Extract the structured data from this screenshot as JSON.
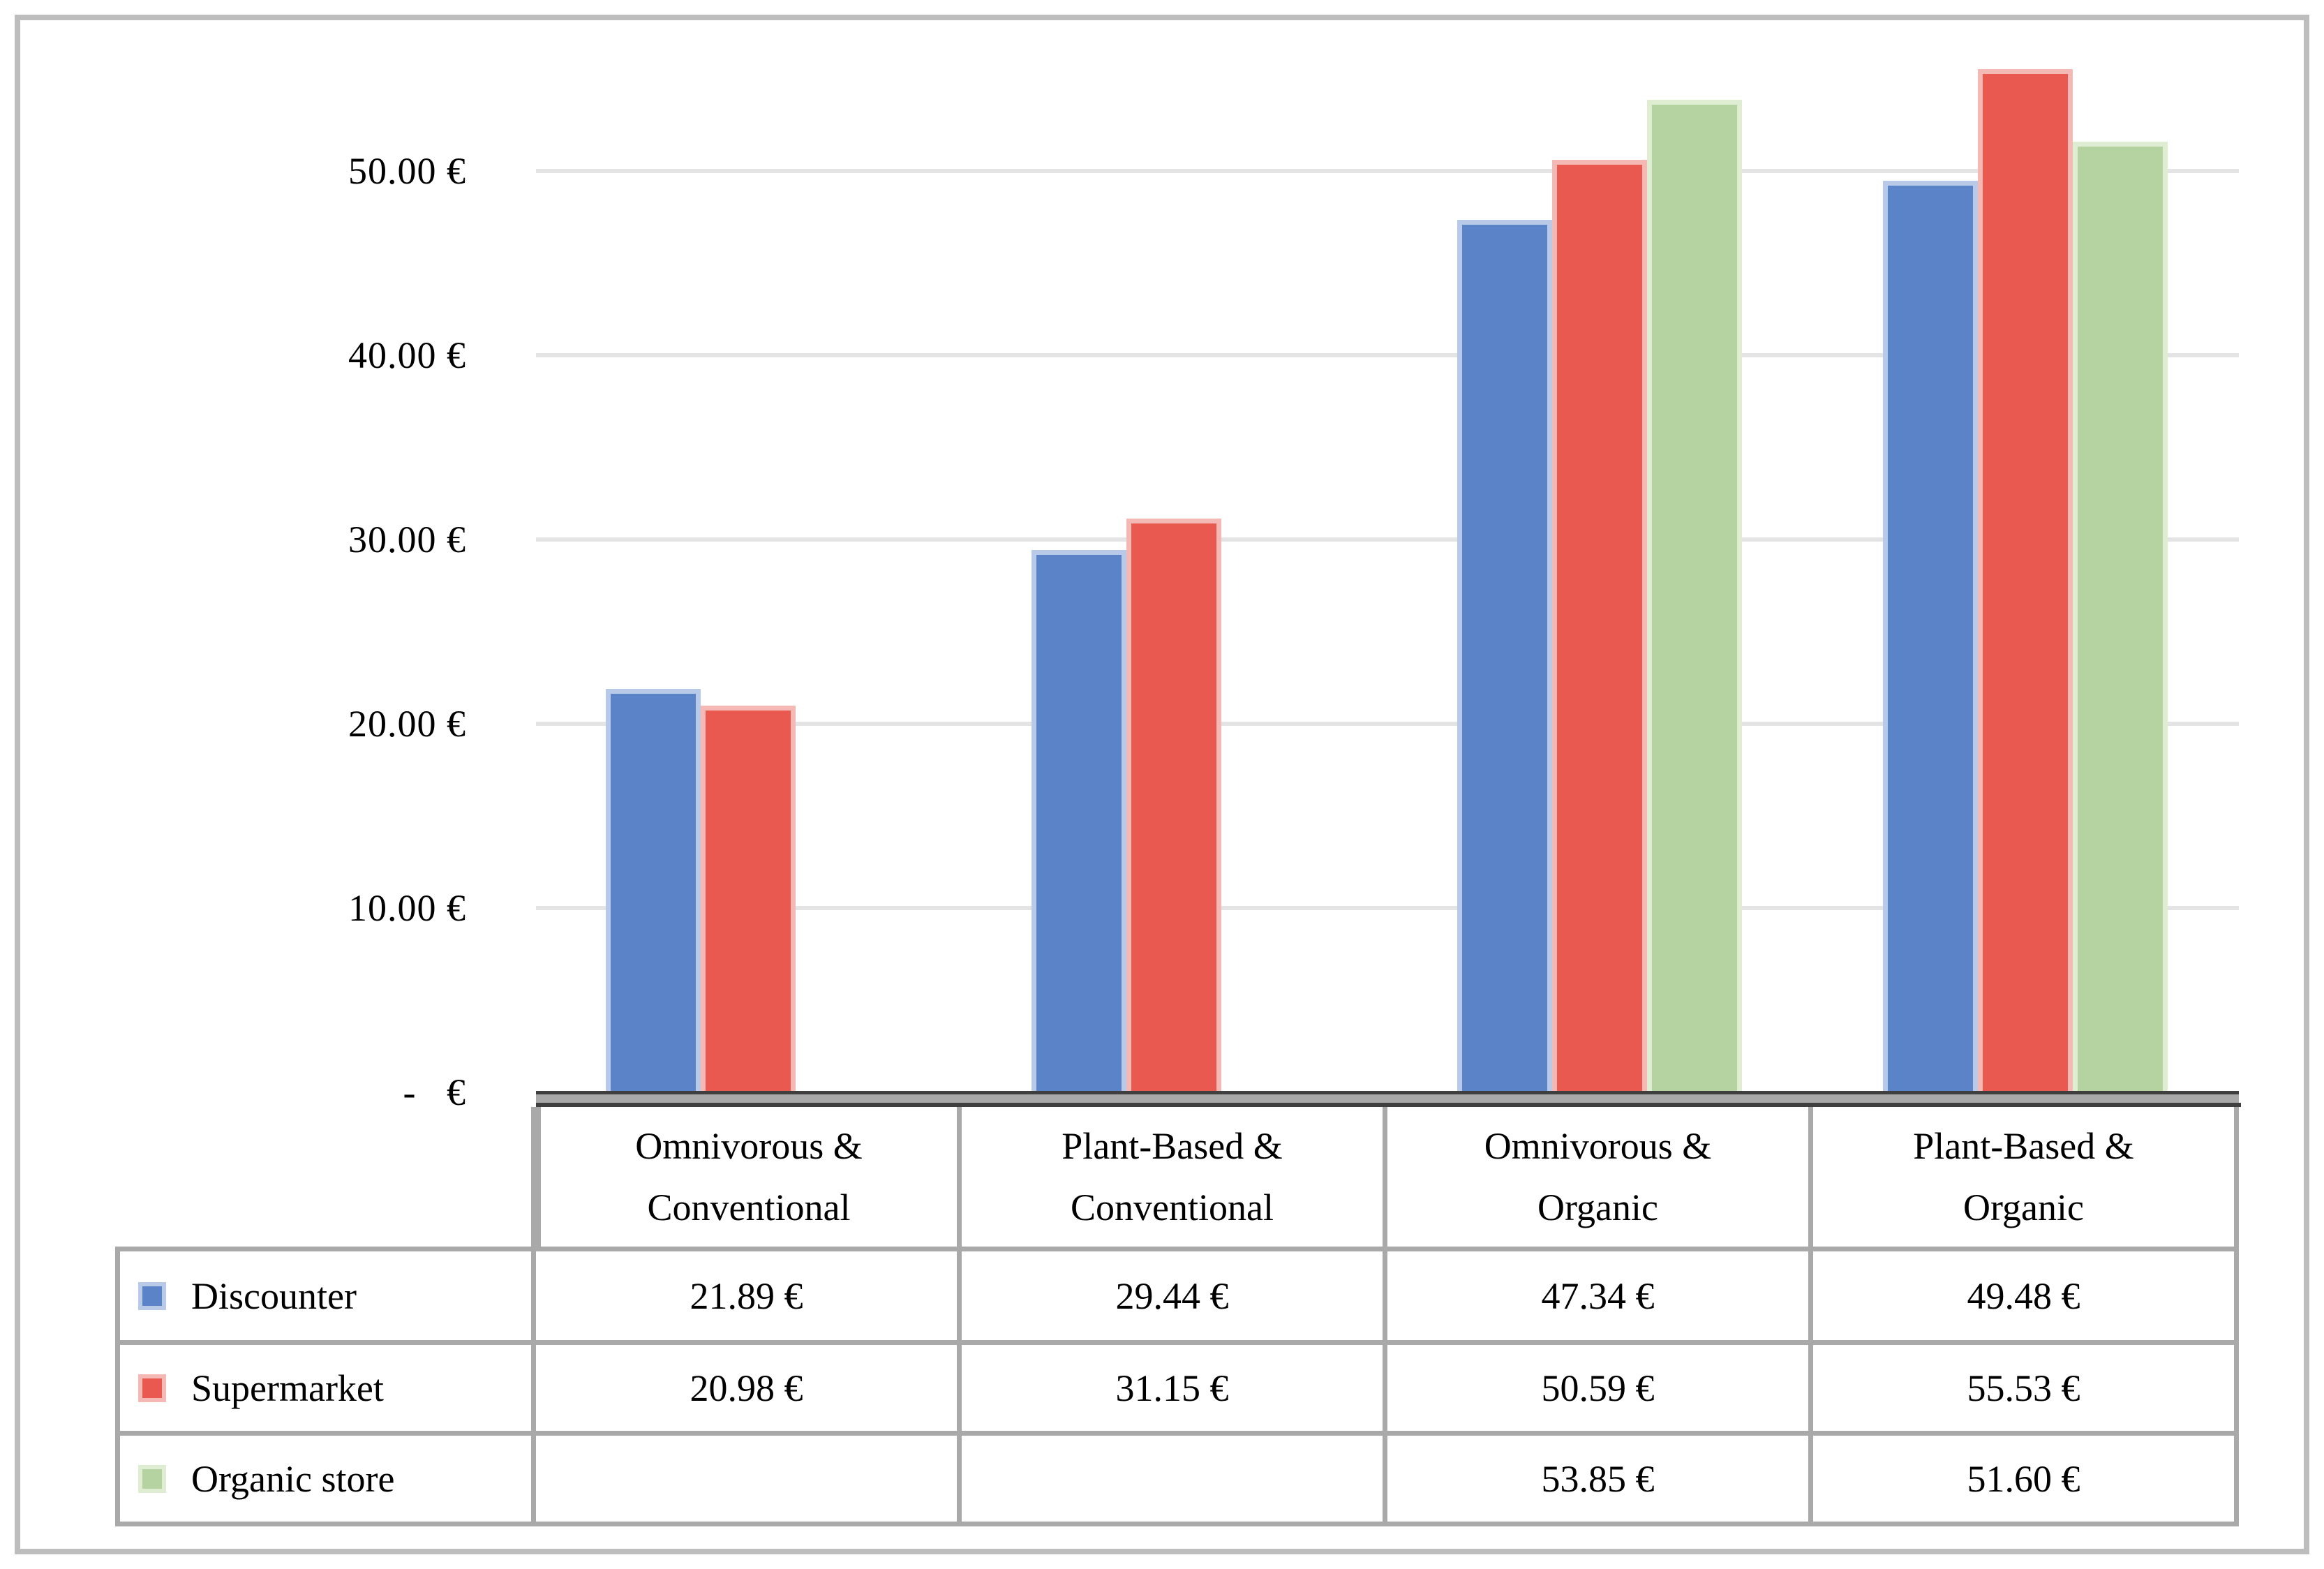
{
  "figure": {
    "background": "#ffffff",
    "border_color": "#bdbdbd"
  },
  "chart_data": {
    "type": "bar",
    "title": "",
    "categories": [
      "Omnivorous & Conventional",
      "Plant-Based & Conventional",
      "Omnivorous & Organic",
      "Plant-Based & Organic"
    ],
    "series": [
      {
        "name": "Discounter",
        "color": "#5b84c8",
        "border_color": "#b9c9e8",
        "values": [
          21.89,
          29.44,
          47.34,
          49.48
        ]
      },
      {
        "name": "Supermarket",
        "color": "#e9594f",
        "border_color": "#f5b9b5",
        "values": [
          20.98,
          31.15,
          50.59,
          55.53
        ]
      },
      {
        "name": "Organic store",
        "color": "#b5d3a0",
        "border_color": "#dfedd3",
        "values": [
          null,
          null,
          53.85,
          51.6
        ]
      }
    ],
    "y_axis": {
      "ticks": [
        0,
        10,
        20,
        30,
        40,
        50
      ],
      "tick_labels": [
        "-   €",
        "10.00 €",
        "20.00 €",
        "30.00 €",
        "40.00 €",
        "50.00 €"
      ],
      "range": [
        0,
        58
      ],
      "unit": "EUR"
    },
    "grid": true,
    "gridline_color": "#e4e4e4",
    "axis_line_color": "#3f3f3f",
    "legend_position": "table-left"
  },
  "table": {
    "columns": [
      "Omnivorous &\nConventional",
      "Plant-Based &\nConventional",
      "Omnivorous &\nOrganic",
      "Plant-Based &\nOrganic"
    ],
    "rows": [
      {
        "label": "Discounter",
        "cells": [
          "21.89 €",
          "29.44 €",
          "47.34 €",
          "49.48 €"
        ]
      },
      {
        "label": "Supermarket",
        "cells": [
          "20.98 €",
          "31.15 €",
          "50.59 €",
          "55.53 €"
        ]
      },
      {
        "label": "Organic store",
        "cells": [
          "",
          "",
          "53.85 €",
          "51.60 €"
        ]
      }
    ],
    "border_color": "#a9a9a9",
    "header_top_border_color": "#3f3f3f"
  }
}
